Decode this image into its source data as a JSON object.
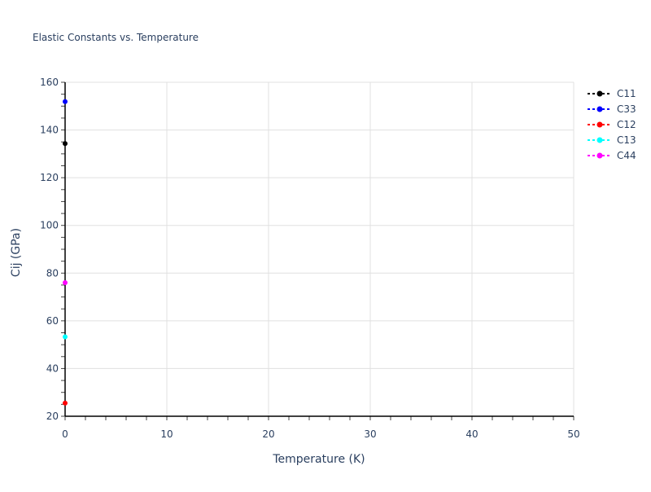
{
  "chart_data": {
    "type": "scatter",
    "title": "Elastic Constants vs. Temperature",
    "xlabel": "Temperature (K)",
    "ylabel": "Cij (GPa)",
    "xlim": [
      0,
      50
    ],
    "ylim": [
      20,
      160
    ],
    "xticks": [
      0,
      10,
      20,
      30,
      40,
      50
    ],
    "yticks": [
      20,
      40,
      60,
      80,
      100,
      120,
      140,
      160
    ],
    "grid": true,
    "legend_position": "top-right",
    "series": [
      {
        "name": "C11",
        "color": "#000000",
        "x": [
          0
        ],
        "y": [
          134.3
        ]
      },
      {
        "name": "C33",
        "color": "#0000ff",
        "x": [
          0
        ],
        "y": [
          151.9
        ]
      },
      {
        "name": "C12",
        "color": "#ff0000",
        "x": [
          0
        ],
        "y": [
          25.5
        ]
      },
      {
        "name": "C13",
        "color": "#00ffff",
        "x": [
          0
        ],
        "y": [
          53.3
        ]
      },
      {
        "name": "C44",
        "color": "#ff00ff",
        "x": [
          0
        ],
        "y": [
          76.0
        ]
      }
    ]
  }
}
